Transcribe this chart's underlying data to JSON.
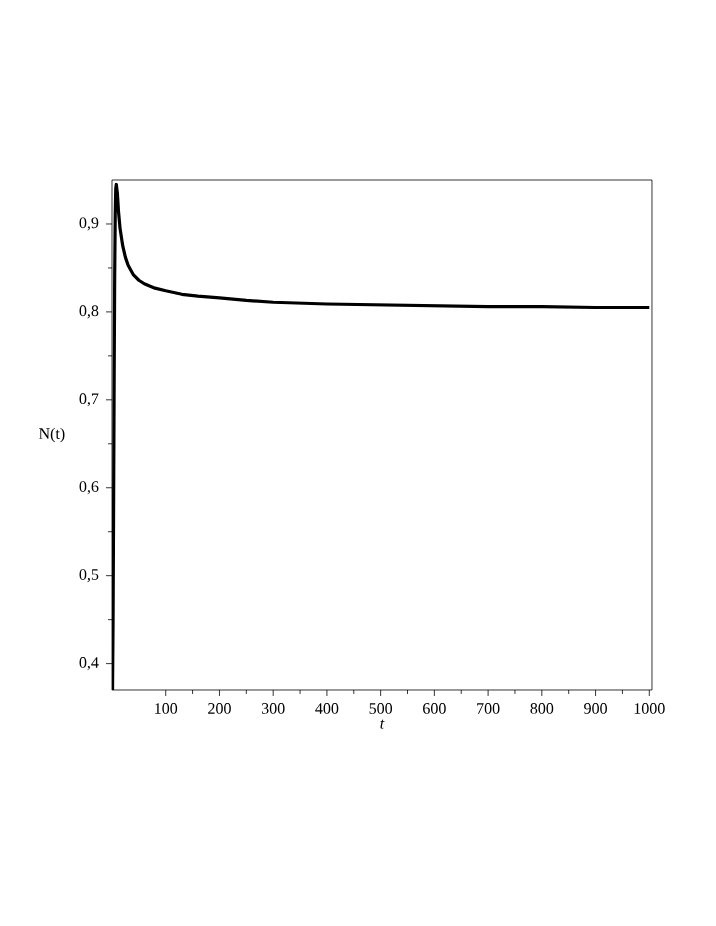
{
  "chart_data": {
    "type": "line",
    "xlabel": "t",
    "ylabel": "N(t)",
    "x": [
      1,
      2,
      3,
      4,
      5,
      6,
      7,
      8,
      10,
      12,
      15,
      20,
      25,
      30,
      40,
      50,
      60,
      80,
      100,
      130,
      160,
      200,
      250,
      300,
      400,
      500,
      600,
      700,
      800,
      900,
      1000
    ],
    "series": [
      {
        "color": "#000000",
        "values": [
          0.37,
          0.45,
          0.58,
          0.72,
          0.84,
          0.91,
          0.94,
          0.945,
          0.935,
          0.915,
          0.895,
          0.875,
          0.862,
          0.853,
          0.842,
          0.836,
          0.832,
          0.827,
          0.824,
          0.82,
          0.818,
          0.816,
          0.813,
          0.811,
          0.809,
          0.808,
          0.807,
          0.806,
          0.806,
          0.805,
          0.805
        ]
      }
    ],
    "xlim": [
      0,
      1005
    ],
    "ylim": [
      0.37,
      0.95
    ],
    "xticks": [
      100,
      200,
      300,
      400,
      500,
      600,
      700,
      800,
      900,
      1000
    ],
    "yticks": [
      {
        "value": 0.4,
        "label": "0,4"
      },
      {
        "value": 0.5,
        "label": "0,5"
      },
      {
        "value": 0.6,
        "label": "0,6"
      },
      {
        "value": 0.7,
        "label": "0,7"
      },
      {
        "value": 0.8,
        "label": "0,8"
      },
      {
        "value": 0.9,
        "label": "0,9"
      }
    ],
    "grid": false,
    "marker": "none",
    "line_style": "solid"
  }
}
